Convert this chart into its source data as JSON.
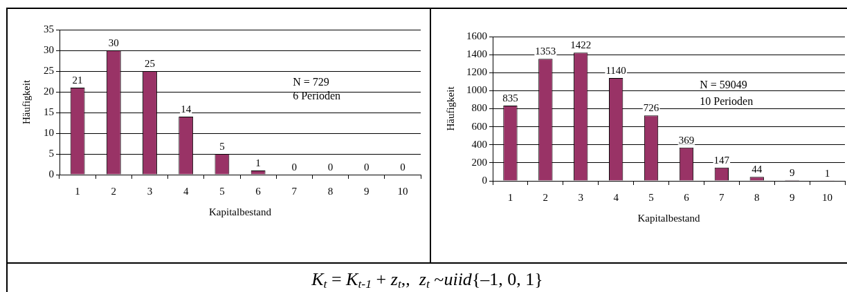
{
  "chart_data": [
    {
      "type": "bar",
      "xlabel": "Kapitalbestand",
      "ylabel": "Häufigkeit",
      "categories": [
        "1",
        "2",
        "3",
        "4",
        "5",
        "6",
        "7",
        "8",
        "9",
        "10"
      ],
      "values": [
        21,
        30,
        25,
        14,
        5,
        1,
        0,
        0,
        0,
        0
      ],
      "color": "#993366",
      "ylim": [
        0,
        35
      ],
      "yticks": [
        0,
        5,
        10,
        15,
        20,
        25,
        30,
        35
      ],
      "grid": "y",
      "data_labels": true,
      "annotations": [
        "N = 729",
        "6 Perioden"
      ]
    },
    {
      "type": "bar",
      "xlabel": "Kapitalbestand",
      "ylabel": "Häufigkeit",
      "categories": [
        "1",
        "2",
        "3",
        "4",
        "5",
        "6",
        "7",
        "8",
        "9",
        "10"
      ],
      "values": [
        835,
        1353,
        1422,
        1140,
        726,
        369,
        147,
        44,
        9,
        1
      ],
      "color": "#993366",
      "ylim": [
        0,
        1600
      ],
      "yticks": [
        0,
        200,
        400,
        600,
        800,
        1000,
        1200,
        1400,
        1600
      ],
      "grid": "y",
      "data_labels": true,
      "annotations": [
        "N = 59049",
        "10 Perioden"
      ]
    },
    {
      "type": "other",
      "annotations": [
        "K$_{t}$ = K$_{t-1}$ + z$_{t}$,,  z$_{t}$ ~uiid{–1, 0, 1}"
      ]
    }
  ]
}
